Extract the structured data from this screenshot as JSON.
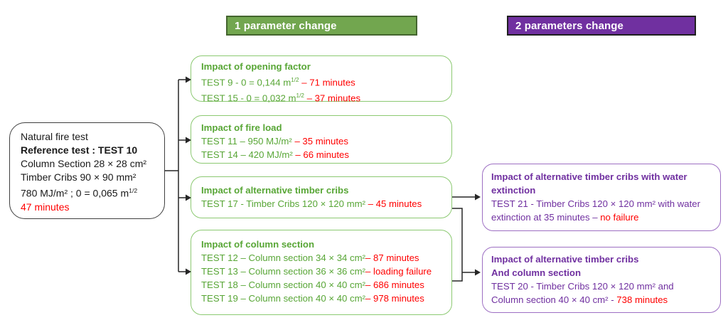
{
  "colors": {
    "green_text": "#58A636",
    "green_border": "#8CC972",
    "green_header_fill": "#72A64F",
    "green_header_border": "#44652F",
    "purple_text": "#7030A0",
    "purple_border": "#9D6FC3",
    "purple_header_fill": "#7030A0",
    "purple_header_border": "#1F1F1F",
    "red": "#FF0000",
    "line": "#262626"
  },
  "headers": {
    "one_param": "1 parameter change",
    "two_param": "2 parameters change"
  },
  "reference_box": {
    "lines": [
      [
        {
          "t": "Natural fire test"
        }
      ],
      [
        {
          "t": "Reference test : TEST 10",
          "b": true
        }
      ],
      [
        {
          "t": "Column Section 28 × 28 cm²"
        }
      ],
      [
        {
          "t": "Timber Cribs 90 × 90 mm²"
        }
      ],
      [
        {
          "t": "780 MJ/m² ; 0 = 0,065 m"
        },
        {
          "t": "1/2",
          "sup": true
        }
      ],
      [
        {
          "t": "47 minutes",
          "c": "red"
        }
      ]
    ]
  },
  "green_boxes": [
    {
      "id": "opening-factor",
      "lines": [
        [
          {
            "t": "Impact of opening factor",
            "b": true
          }
        ],
        [
          {
            "t": "TEST 9 - 0 = 0,144 m"
          },
          {
            "t": "1/2",
            "sup": true
          },
          {
            "t": " – 71 minutes",
            "c": "red"
          }
        ],
        [
          {
            "t": "TEST 15 - 0 = 0,032 m"
          },
          {
            "t": "1/2",
            "sup": true
          },
          {
            "t": " – 37 minutes",
            "c": "red"
          }
        ]
      ]
    },
    {
      "id": "fire-load",
      "lines": [
        [
          {
            "t": "Impact of fire load",
            "b": true
          }
        ],
        [
          {
            "t": "TEST 11 – 950 MJ/m² "
          },
          {
            "t": "– 35 minutes",
            "c": "red"
          }
        ],
        [
          {
            "t": "TEST 14 – 420 MJ/m² "
          },
          {
            "t": "– 66 minutes",
            "c": "red"
          }
        ]
      ]
    },
    {
      "id": "alternative-timber-cribs",
      "lines": [
        [
          {
            "t": "Impact of alternative timber cribs",
            "b": true
          }
        ],
        [
          {
            "t": "TEST 17 - Timber Cribs 120 × 120 mm² "
          },
          {
            "t": "– 45 minutes",
            "c": "red"
          }
        ]
      ]
    },
    {
      "id": "column-section",
      "lines": [
        [
          {
            "t": "Impact of column section",
            "b": true
          }
        ],
        [
          {
            "t": "TEST 12 – Column section 34 × 34 cm²"
          },
          {
            "t": "– 87 minutes",
            "c": "red"
          }
        ],
        [
          {
            "t": "TEST 13 – Column section 36 × 36 cm²"
          },
          {
            "t": "– loading failure",
            "c": "red"
          }
        ],
        [
          {
            "t": "TEST 18 – Column section 40 × 40 cm²"
          },
          {
            "t": "– 686 minutes",
            "c": "red"
          }
        ],
        [
          {
            "t": "TEST 19 – Column section 40 × 40 cm²"
          },
          {
            "t": "– 978 minutes",
            "c": "red"
          }
        ]
      ]
    }
  ],
  "purple_boxes": [
    {
      "id": "timber-cribs-water-extinction",
      "lines": [
        [
          {
            "t": "Impact of alternative timber cribs with water",
            "b": true
          }
        ],
        [
          {
            "t": "extinction",
            "b": true
          }
        ],
        [
          {
            "t": "TEST 21 - Timber Cribs 120 × 120 mm² with water"
          }
        ],
        [
          {
            "t": "extinction at 35 minutes – "
          },
          {
            "t": "no failure",
            "c": "red"
          }
        ]
      ]
    },
    {
      "id": "timber-cribs-and-column-section",
      "lines": [
        [
          {
            "t": "Impact of alternative timber cribs",
            "b": true
          }
        ],
        [
          {
            "t": "And column section",
            "b": true
          }
        ],
        [
          {
            "t": "TEST 20 - Timber Cribs 120 × 120 mm² and"
          }
        ],
        [
          {
            "t": "Column section 40 × 40 cm² - "
          },
          {
            "t": "738 minutes",
            "c": "red"
          }
        ]
      ]
    }
  ]
}
